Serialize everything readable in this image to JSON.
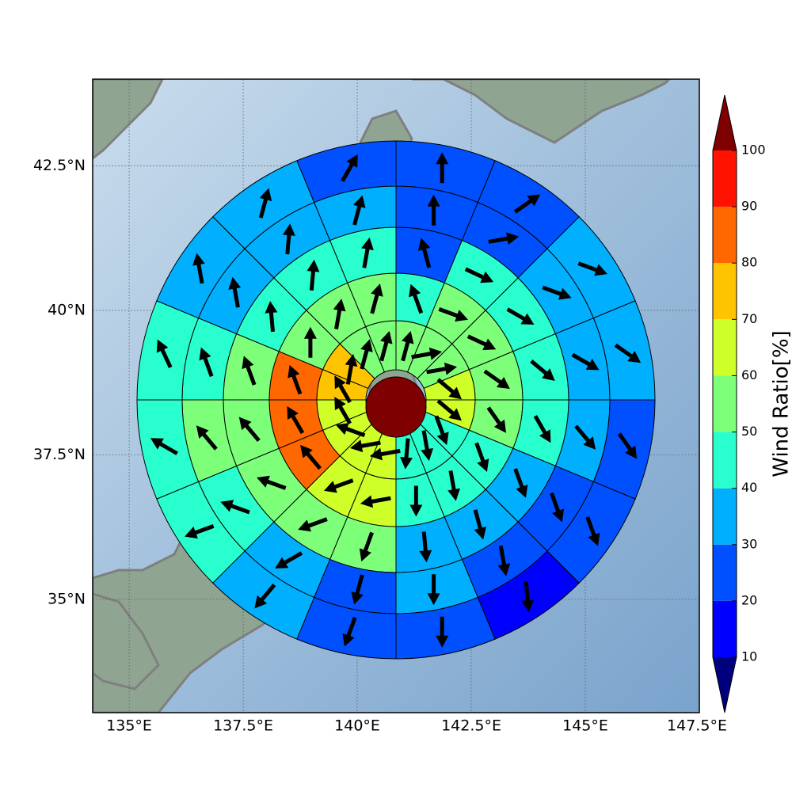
{
  "chart_data": {
    "type": "polar-wind-map",
    "xlim": [
      134.2,
      147.5
    ],
    "ylim": [
      33.04,
      44.0
    ],
    "xticks": [
      {
        "value": 135,
        "label": "135°E"
      },
      {
        "value": 137.5,
        "label": "137.5°E"
      },
      {
        "value": 140,
        "label": "140°E"
      },
      {
        "value": 142.5,
        "label": "142.5°E"
      },
      {
        "value": 145,
        "label": "145°E"
      },
      {
        "value": 147.5,
        "label": "147.5°E"
      }
    ],
    "yticks": [
      {
        "value": 35,
        "label": "35°N"
      },
      {
        "value": 37.5,
        "label": "37.5°N"
      },
      {
        "value": 40,
        "label": "40°N"
      },
      {
        "value": 42.5,
        "label": "42.5°N"
      }
    ],
    "grid": true,
    "colorbar": {
      "label": "Wind Ratio[%]",
      "ticks": [
        10,
        20,
        30,
        40,
        50,
        60,
        70,
        80,
        90,
        100
      ],
      "colors": [
        "#00007f",
        "#0000ff",
        "#0050ff",
        "#00b0ff",
        "#29ffce",
        "#7dff7a",
        "#ceff29",
        "#ffc400",
        "#ff6800",
        "#ff1300",
        "#7f0000"
      ],
      "extend": "both"
    },
    "center_value": 105,
    "rings": [
      {
        "values": [
          55,
          55,
          55,
          65,
          65,
          45,
          45,
          45,
          65,
          65,
          65,
          65,
          75,
          75,
          55,
          55
        ],
        "directions": [
          15,
          80,
          80,
          130,
          130,
          160,
          170,
          185,
          260,
          260,
          290,
          330,
          330,
          10,
          15,
          15
        ]
      },
      {
        "values": [
          45,
          55,
          55,
          55,
          55,
          45,
          45,
          45,
          65,
          65,
          85,
          85,
          85,
          55,
          55,
          55
        ],
        "directions": [
          340,
          110,
          115,
          125,
          145,
          160,
          170,
          180,
          260,
          250,
          320,
          330,
          340,
          0,
          10,
          15
        ]
      },
      {
        "values": [
          25,
          45,
          45,
          45,
          45,
          35,
          35,
          35,
          55,
          55,
          55,
          55,
          55,
          45,
          45,
          45
        ],
        "directions": [
          345,
          115,
          120,
          130,
          150,
          160,
          165,
          175,
          200,
          250,
          290,
          320,
          340,
          355,
          5,
          10
        ]
      },
      {
        "values": [
          25,
          25,
          35,
          35,
          35,
          25,
          25,
          35,
          25,
          35,
          45,
          55,
          45,
          35,
          35,
          35
        ],
        "directions": [
          0,
          80,
          110,
          120,
          140,
          160,
          170,
          180,
          195,
          240,
          290,
          320,
          340,
          350,
          5,
          15
        ]
      },
      {
        "values": [
          25,
          25,
          35,
          35,
          25,
          25,
          15,
          25,
          25,
          35,
          45,
          45,
          45,
          35,
          35,
          25
        ],
        "directions": [
          0,
          55,
          110,
          125,
          145,
          160,
          175,
          180,
          200,
          220,
          250,
          300,
          335,
          350,
          15,
          30
        ]
      }
    ]
  }
}
